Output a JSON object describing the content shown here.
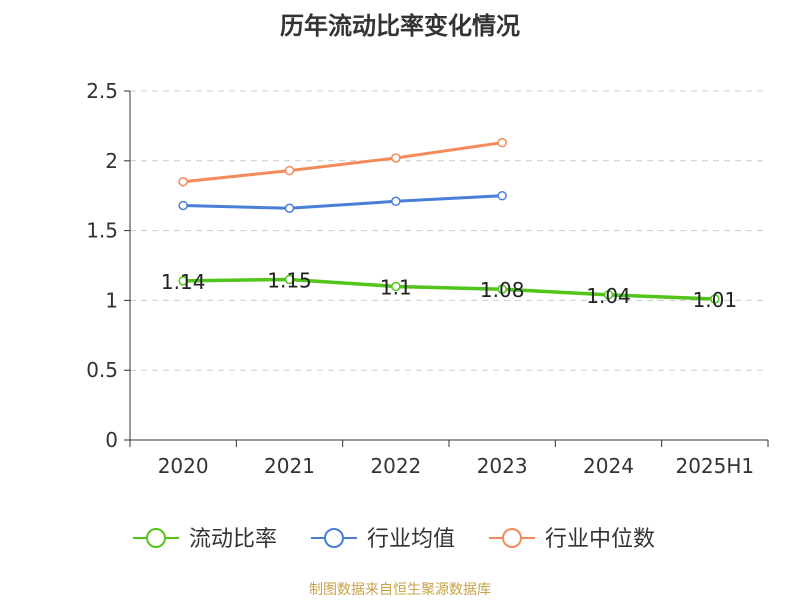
{
  "chart_data": {
    "type": "line",
    "title": "历年流动比率变化情况",
    "categories": [
      "2020",
      "2021",
      "2022",
      "2023",
      "2024",
      "2025H1"
    ],
    "ylim": [
      0,
      2.5
    ],
    "yticks": [
      "0",
      "0.5",
      "1",
      "1.5",
      "2",
      "2.5"
    ],
    "grid": true,
    "legend_position": "bottom",
    "series": [
      {
        "name": "流动比率",
        "color": "#52c41a",
        "values": [
          1.14,
          1.15,
          1.1,
          1.08,
          1.04,
          1.01
        ],
        "labels": [
          "1.14",
          "1.15",
          "1.1",
          "1.08",
          "1.04",
          "1.01"
        ]
      },
      {
        "name": "行业均值",
        "color": "#4a7fd8",
        "values": [
          1.68,
          1.66,
          1.71,
          1.75,
          null,
          null
        ]
      },
      {
        "name": "行业中位数",
        "color": "#f58a5a",
        "values": [
          1.85,
          1.93,
          2.02,
          2.13,
          null,
          null
        ]
      }
    ]
  },
  "footer": {
    "text": "制图数据来自恒生聚源数据库",
    "color": "#c8a24a"
  }
}
